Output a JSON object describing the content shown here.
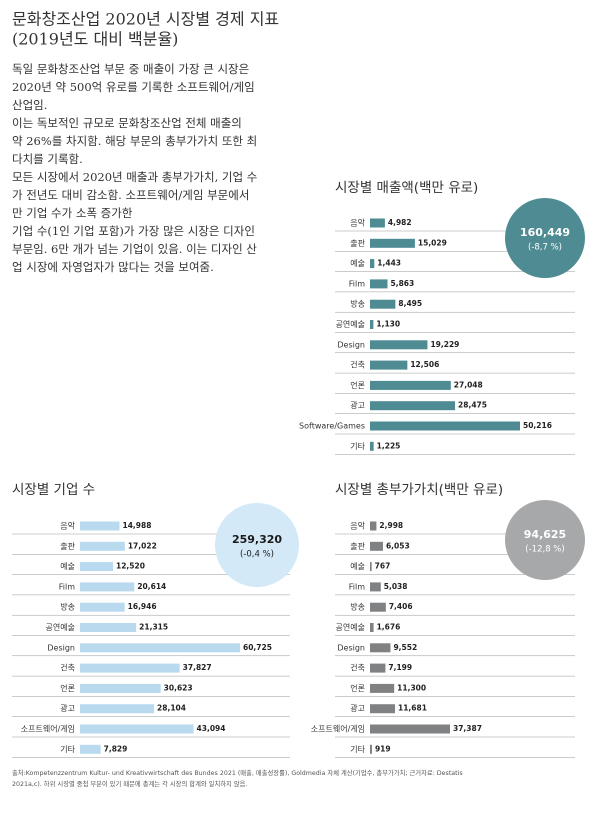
{
  "header": {
    "title": [
      "문화창조산업 2020년 시장별 경제 지표",
      "(2019년도 대비 백분율)"
    ]
  },
  "body": {
    "lines": [
      "독일 문화창조산업 부문 중 매출이 가장 큰 시장은",
      "2020년 약 500억 유로를 기록한 소프트웨어/게임",
      "산업임.",
      "이는 독보적인 규모로 문화창조산업 전체 매출의",
      "약 26%를 차지함. 해당 부문의 총부가가치 또한 최",
      "다치를 기록함.",
      "모든 시장에서 2020년 매출과 총부가가치, 기업 수",
      "가 전년도 대비 감소함. 소프트웨어/게임 부문에서",
      "만 기업 수가 소폭 증가한",
      "기업 수(1인 기업 포함)가 가장 많은 시장은 디자인",
      "부문임. 6만 개가 넘는 기업이 있음. 이는 디자인 산",
      "업 시장에 자영업자가 많다는 것을 보여줌."
    ]
  },
  "chart_data": [
    {
      "type": "hbar",
      "title": "시장별 매출액(백만 유로)",
      "color": "#4e8b93",
      "categories": [
        "음악",
        "출판",
        "예술",
        "Film",
        "방송",
        "공연예술",
        "Design",
        "건축",
        "언론",
        "광고",
        "Software/Games",
        "기타"
      ],
      "values": [
        4982,
        15029,
        1443,
        5863,
        8495,
        1130,
        19229,
        12506,
        27048,
        28475,
        50216,
        1225
      ],
      "value_labels": [
        "4,982",
        "15,029",
        "1,443",
        "5,863",
        "8,495",
        "1,130",
        "19,229",
        "12,506",
        "27,048",
        "28,475",
        "50,216",
        "1,225"
      ],
      "annotations": [
        "160,449",
        "(-8,7 %)"
      ],
      "badge_color": "#4e8b93",
      "badge_text_color": "#ffffff"
    },
    {
      "type": "hbar",
      "title": "시장별 기업 수",
      "color": "#b9d9ef",
      "categories": [
        "음악",
        "출판",
        "예술",
        "Film",
        "방송",
        "공연예술",
        "Design",
        "건축",
        "언론",
        "광고",
        "소프트웨어/게임",
        "기타"
      ],
      "values": [
        14988,
        17022,
        12520,
        20614,
        16946,
        21315,
        60725,
        37827,
        30623,
        28104,
        43094,
        7829
      ],
      "value_labels": [
        "14,988",
        "17,022",
        "12,520",
        "20,614",
        "16,946",
        "21,315",
        "60,725",
        "37,827",
        "30,623",
        "28,104",
        "43,094",
        "7,829"
      ],
      "annotations": [
        "259,320",
        "(-0,4 %)"
      ],
      "badge_color": "#d4e9f7",
      "badge_text_color": "#1a1a1a"
    },
    {
      "type": "hbar",
      "title": "시장별 총부가가치(백만 유로)",
      "color": "#7f8183",
      "categories": [
        "음악",
        "출판",
        "예술",
        "Film",
        "방송",
        "공연예술",
        "Design",
        "건축",
        "언론",
        "광고",
        "소프트웨어/게임",
        "기타"
      ],
      "values": [
        2998,
        6053,
        767,
        5038,
        7406,
        1676,
        9552,
        7199,
        11300,
        11681,
        37387,
        919
      ],
      "value_labels": [
        "2,998",
        "6,053",
        "767",
        "5,038",
        "7,406",
        "1,676",
        "9,552",
        "7,199",
        "11,300",
        "11,681",
        "37,387",
        "919"
      ],
      "annotations": [
        "94,625",
        "(-12,8 %)"
      ],
      "badge_color": "#a6a8aa",
      "badge_text_color": "#ffffff"
    }
  ],
  "footnote": [
    "출처:Kompetenzzentrum Kultur- und Kreativwirtschaft des Bundes 2021 (매출, 매출성장률), Goldmedia 자체 계산(기업수, 총부가가치; 근거자료: Destatis",
    "2021a,c). 하위 시장별 중첩 부분이 있기 때문에 총계는 각 시장의 합계와 일치하지 않음."
  ]
}
